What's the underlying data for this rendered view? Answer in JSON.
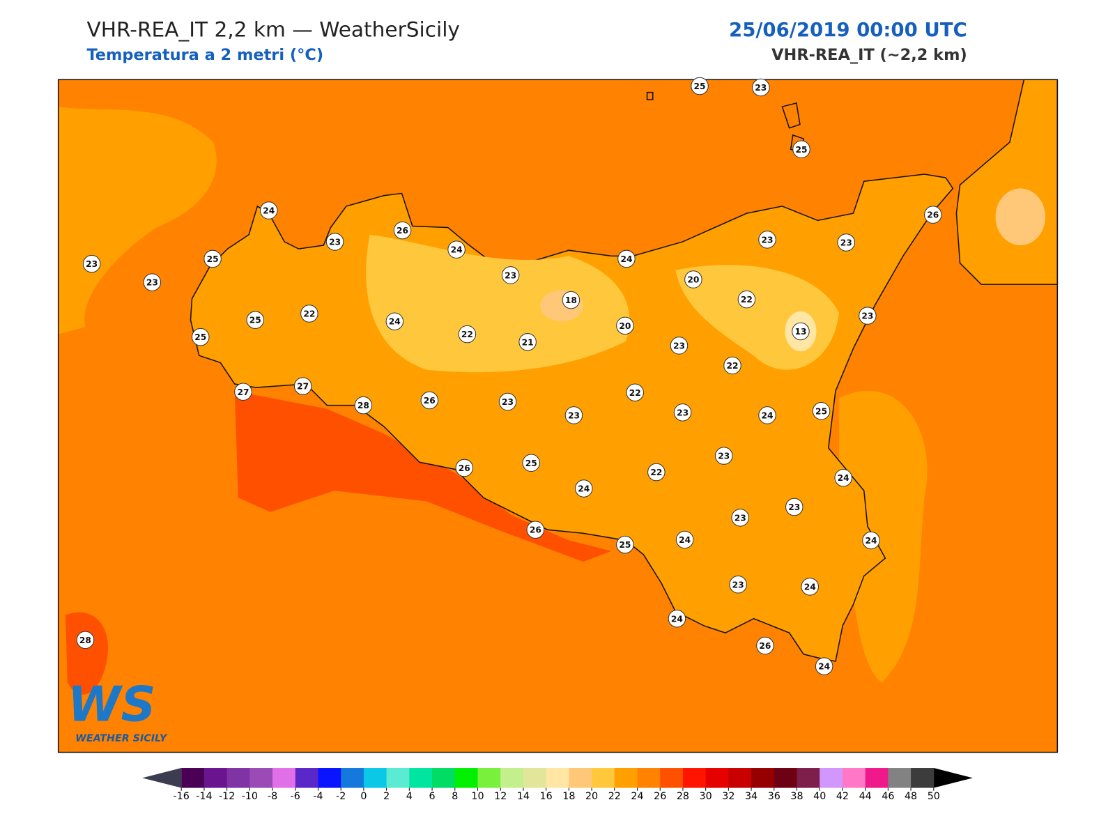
{
  "header": {
    "title": "VHR-REA_IT 2,2 km — WeatherSicily",
    "subtitle": "Temperatura a 2 metri (°C)",
    "date": "25/06/2019 00:00 UTC",
    "model": "VHR-REA_IT (~2,2 km)"
  },
  "stations": [
    25,
    23,
    25,
    24,
    26,
    23,
    24,
    25,
    23,
    23,
    23,
    24,
    23,
    23,
    26,
    20,
    22,
    18,
    22,
    25,
    24,
    25,
    20,
    22,
    21,
    23,
    13,
    23,
    22,
    27,
    27,
    22,
    28,
    26,
    23,
    23,
    23,
    24,
    25,
    23,
    26,
    25,
    22,
    24,
    24,
    23,
    23,
    26,
    25,
    24,
    24,
    23,
    24,
    24,
    26,
    24,
    28
  ],
  "colorbar": {
    "ticks": [
      -16,
      -14,
      -12,
      -10,
      -8,
      -6,
      -4,
      -2,
      0,
      2,
      4,
      6,
      8,
      10,
      12,
      14,
      16,
      18,
      20,
      22,
      24,
      26,
      28,
      30,
      32,
      34,
      36,
      38,
      40,
      42,
      44,
      46,
      48,
      50
    ],
    "colors": [
      "#4b0055",
      "#6a1490",
      "#7f33a5",
      "#9a4bb5",
      "#e170e8",
      "#5a28c8",
      "#0a14ff",
      "#1478dc",
      "#0ac8e6",
      "#5aebd2",
      "#00e6a0",
      "#00dc64",
      "#00f000",
      "#78f03c",
      "#c3f08c",
      "#e1e69b",
      "#ffe6a5",
      "#ffc878",
      "#ffc83c",
      "#ffa000",
      "#ff8200",
      "#ff5000",
      "#ff1400",
      "#e60000",
      "#c80000",
      "#960000",
      "#6e0014",
      "#7d1e4b",
      "#d296ff",
      "#ff78c8",
      "#f0198c",
      "#828282",
      "#3c3c3c"
    ],
    "under": "#3c3c50",
    "over": "#000000"
  },
  "logo": {
    "mark": "WS",
    "name": "WEATHER SICILY"
  }
}
